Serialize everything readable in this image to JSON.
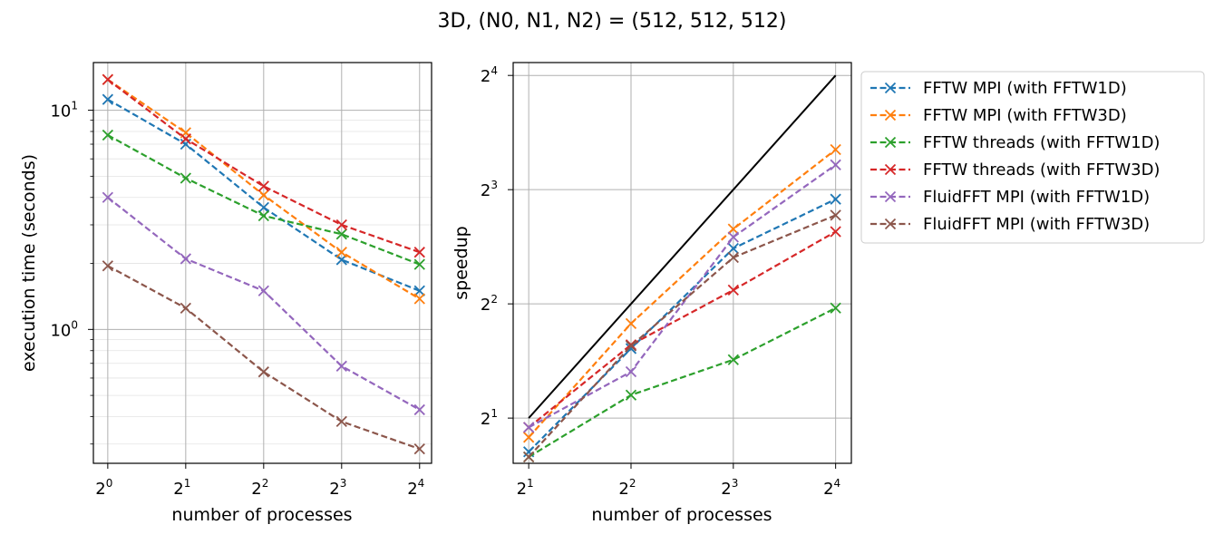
{
  "figure": {
    "title": "3D, (N0, N1, N2) = (512, 512, 512)"
  },
  "colors": {
    "FFTW MPI (with FFTW1D)": "#1f77b4",
    "FFTW MPI (with FFTW3D)": "#ff7f0e",
    "FFTW threads (with FFTW1D)": "#2ca02c",
    "FFTW threads (with FFTW3D)": "#d62728",
    "FluidFFT MPI (with FFTW1D)": "#9467bd",
    "FluidFFT MPI (with FFTW3D)": "#8c564b",
    "ideal": "#000000"
  },
  "legend": {
    "placement": "outside-right-top",
    "entries": [
      "FFTW MPI (with FFTW1D)",
      "FFTW MPI (with FFTW3D)",
      "FFTW threads (with FFTW1D)",
      "FFTW threads (with FFTW3D)",
      "FluidFFT MPI (with FFTW1D)",
      "FluidFFT MPI (with FFTW3D)"
    ]
  },
  "chart_data": [
    {
      "type": "line",
      "xlabel": "number of processes",
      "ylabel": "execution time (seconds)",
      "xscale": "log2",
      "yscale": "log10",
      "xlim": [
        0.88,
        17.8
      ],
      "ylim": [
        0.245,
        16.5
      ],
      "xticks": [
        {
          "value": 1,
          "base": "2",
          "exp": "0"
        },
        {
          "value": 2,
          "base": "2",
          "exp": "1"
        },
        {
          "value": 4,
          "base": "2",
          "exp": "2"
        },
        {
          "value": 8,
          "base": "2",
          "exp": "3"
        },
        {
          "value": 16,
          "base": "2",
          "exp": "4"
        }
      ],
      "yticks": [
        {
          "value": 1,
          "base": "10",
          "exp": "0"
        },
        {
          "value": 10,
          "base": "10",
          "exp": "1"
        }
      ],
      "grid": true,
      "x": [
        1,
        2,
        4,
        8,
        16
      ],
      "series": [
        {
          "name": "FFTW MPI (with FFTW1D)",
          "values": [
            11.2,
            7.0,
            3.6,
            2.08,
            1.5
          ],
          "style": "dashed",
          "marker": "x"
        },
        {
          "name": "FFTW MPI (with FFTW3D)",
          "values": [
            13.8,
            7.9,
            4.1,
            2.25,
            1.38
          ],
          "style": "dashed",
          "marker": "x"
        },
        {
          "name": "FFTW threads (with FFTW1D)",
          "values": [
            7.7,
            4.9,
            3.3,
            2.72,
            1.98
          ],
          "style": "dashed",
          "marker": "x"
        },
        {
          "name": "FFTW threads (with FFTW3D)",
          "values": [
            13.8,
            7.4,
            4.5,
            3.0,
            2.25
          ],
          "style": "dashed",
          "marker": "x"
        },
        {
          "name": "FluidFFT MPI (with FFTW1D)",
          "values": [
            4.0,
            2.1,
            1.5,
            0.68,
            0.43
          ],
          "style": "dashed",
          "marker": "x"
        },
        {
          "name": "FluidFFT MPI (with FFTW3D)",
          "values": [
            1.95,
            1.25,
            0.64,
            0.38,
            0.285
          ],
          "style": "dashed",
          "marker": "x"
        }
      ]
    },
    {
      "type": "line",
      "xlabel": "number of processes",
      "ylabel": "speedup",
      "xscale": "log2",
      "yscale": "log2",
      "xlim": [
        1.8,
        17.8
      ],
      "ylim": [
        1.52,
        17.3
      ],
      "xticks": [
        {
          "value": 2,
          "base": "2",
          "exp": "1"
        },
        {
          "value": 4,
          "base": "2",
          "exp": "2"
        },
        {
          "value": 8,
          "base": "2",
          "exp": "3"
        },
        {
          "value": 16,
          "base": "2",
          "exp": "4"
        }
      ],
      "yticks": [
        {
          "value": 2,
          "base": "2",
          "exp": "1"
        },
        {
          "value": 4,
          "base": "2",
          "exp": "2"
        },
        {
          "value": 8,
          "base": "2",
          "exp": "3"
        },
        {
          "value": 16,
          "base": "2",
          "exp": "4"
        }
      ],
      "grid": true,
      "x": [
        2,
        4,
        8,
        16
      ],
      "ideal": {
        "x": [
          2,
          16
        ],
        "values": [
          2,
          16
        ],
        "style": "solid"
      },
      "series": [
        {
          "name": "FFTW MPI (with FFTW1D)",
          "values": [
            1.63,
            3.05,
            5.6,
            7.55
          ],
          "style": "dashed",
          "marker": "x"
        },
        {
          "name": "FFTW MPI (with FFTW3D)",
          "values": [
            1.78,
            3.55,
            6.3,
            10.2
          ],
          "style": "dashed",
          "marker": "x"
        },
        {
          "name": "FFTW threads (with FFTW1D)",
          "values": [
            1.58,
            2.3,
            2.85,
            3.9
          ],
          "style": "dashed",
          "marker": "x"
        },
        {
          "name": "FFTW threads (with FFTW3D)",
          "values": [
            1.89,
            3.12,
            4.35,
            6.2
          ],
          "style": "dashed",
          "marker": "x"
        },
        {
          "name": "FluidFFT MPI (with FFTW1D)",
          "values": [
            1.89,
            2.65,
            6.0,
            9.3
          ],
          "style": "dashed",
          "marker": "x"
        },
        {
          "name": "FluidFFT MPI (with FFTW3D)",
          "values": [
            1.58,
            3.1,
            5.3,
            6.85
          ],
          "style": "dashed",
          "marker": "x"
        }
      ]
    }
  ]
}
